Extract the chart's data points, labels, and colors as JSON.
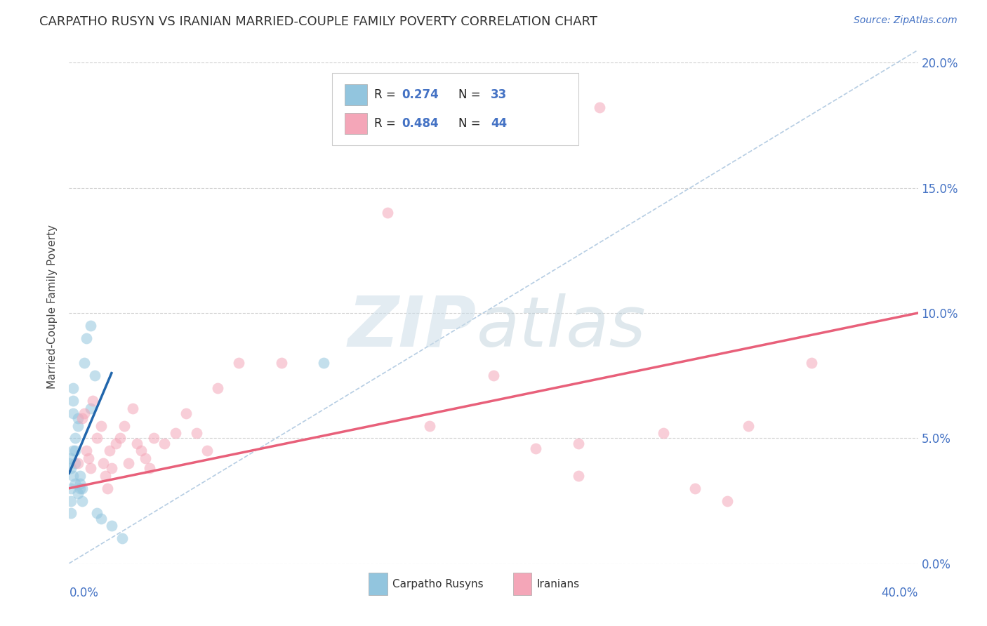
{
  "title": "CARPATHO RUSYN VS IRANIAN MARRIED-COUPLE FAMILY POVERTY CORRELATION CHART",
  "source": "Source: ZipAtlas.com",
  "ylabel": "Married-Couple Family Poverty",
  "legend_blue_label": "Carpatho Rusyns",
  "legend_pink_label": "Iranians",
  "R_blue": 0.274,
  "N_blue": 33,
  "R_pink": 0.484,
  "N_pink": 44,
  "blue_color": "#92c5de",
  "pink_color": "#f4a6b8",
  "blue_line_color": "#2166ac",
  "pink_line_color": "#e8607a",
  "diag_line_color": "#aec8e0",
  "xmin": 0.0,
  "xmax": 0.4,
  "ymin": 0.0,
  "ymax": 0.205,
  "blue_points_x": [
    0.0,
    0.001,
    0.001,
    0.001,
    0.001,
    0.001,
    0.002,
    0.002,
    0.002,
    0.002,
    0.002,
    0.003,
    0.003,
    0.003,
    0.003,
    0.004,
    0.004,
    0.004,
    0.005,
    0.005,
    0.005,
    0.006,
    0.006,
    0.007,
    0.008,
    0.01,
    0.01,
    0.012,
    0.013,
    0.015,
    0.02,
    0.025,
    0.12
  ],
  "blue_points_y": [
    0.04,
    0.038,
    0.042,
    0.03,
    0.025,
    0.02,
    0.035,
    0.06,
    0.065,
    0.07,
    0.045,
    0.04,
    0.045,
    0.05,
    0.032,
    0.028,
    0.055,
    0.058,
    0.035,
    0.03,
    0.032,
    0.025,
    0.03,
    0.08,
    0.09,
    0.095,
    0.062,
    0.075,
    0.02,
    0.018,
    0.015,
    0.01,
    0.08
  ],
  "pink_points_x": [
    0.004,
    0.006,
    0.007,
    0.008,
    0.009,
    0.01,
    0.011,
    0.013,
    0.015,
    0.016,
    0.017,
    0.018,
    0.019,
    0.02,
    0.022,
    0.024,
    0.026,
    0.028,
    0.03,
    0.032,
    0.034,
    0.036,
    0.038,
    0.04,
    0.045,
    0.05,
    0.055,
    0.06,
    0.065,
    0.07,
    0.08,
    0.1,
    0.15,
    0.17,
    0.2,
    0.22,
    0.24,
    0.25,
    0.28,
    0.31,
    0.32,
    0.35,
    0.295,
    0.24
  ],
  "pink_points_y": [
    0.04,
    0.058,
    0.06,
    0.045,
    0.042,
    0.038,
    0.065,
    0.05,
    0.055,
    0.04,
    0.035,
    0.03,
    0.045,
    0.038,
    0.048,
    0.05,
    0.055,
    0.04,
    0.062,
    0.048,
    0.045,
    0.042,
    0.038,
    0.05,
    0.048,
    0.052,
    0.06,
    0.052,
    0.045,
    0.07,
    0.08,
    0.08,
    0.14,
    0.055,
    0.075,
    0.046,
    0.048,
    0.182,
    0.052,
    0.025,
    0.055,
    0.08,
    0.03,
    0.035
  ],
  "blue_line_x": [
    0.0,
    0.02
  ],
  "blue_line_y": [
    0.036,
    0.076
  ],
  "pink_line_x": [
    0.0,
    0.4
  ],
  "pink_line_y": [
    0.03,
    0.1
  ],
  "diag_line_x": [
    0.0,
    0.4
  ],
  "diag_line_y": [
    0.0,
    0.205
  ],
  "x_ticks": [
    0.0,
    0.05,
    0.1,
    0.15,
    0.2,
    0.25,
    0.3,
    0.35,
    0.4
  ],
  "y_ticks": [
    0.0,
    0.05,
    0.1,
    0.15,
    0.2
  ],
  "y_tick_labels": [
    "0.0%",
    "5.0%",
    "10.0%",
    "15.0%",
    "20.0%"
  ],
  "background_color": "#ffffff",
  "grid_color": "#cccccc",
  "tick_color": "#4472c4",
  "title_fontsize": 13,
  "source_fontsize": 10,
  "axis_label_fontsize": 11,
  "tick_fontsize": 12,
  "legend_fontsize": 12
}
